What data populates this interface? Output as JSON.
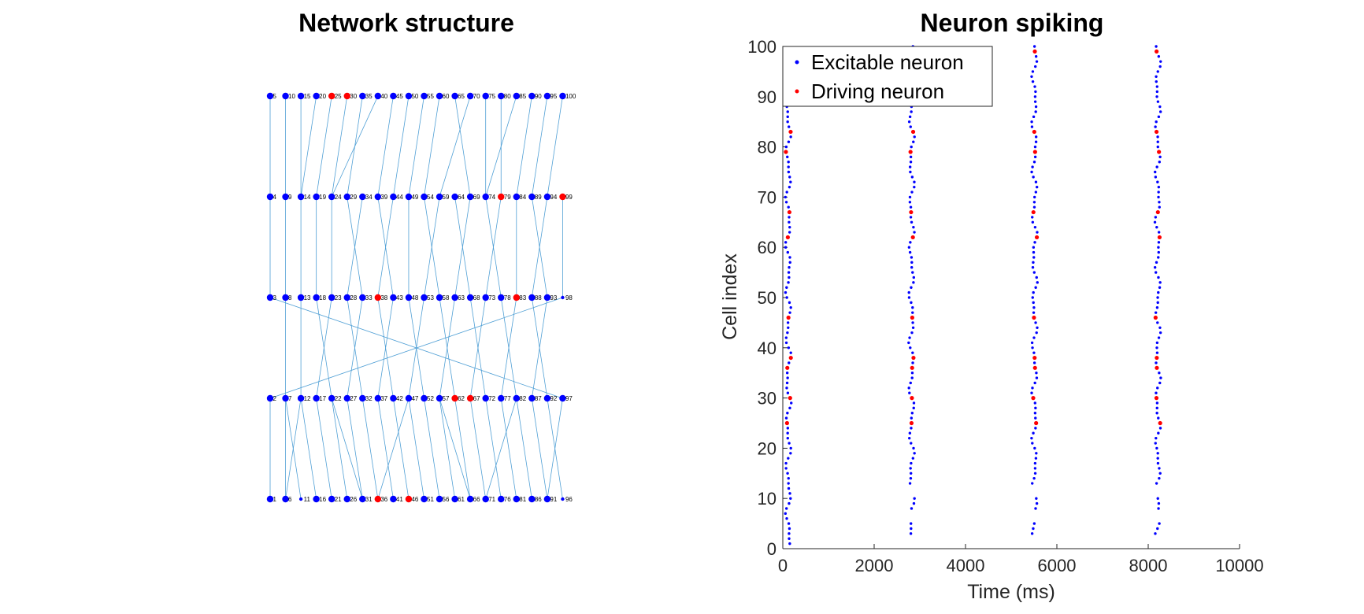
{
  "chart_data": [
    {
      "type": "diagram",
      "title": "Network structure",
      "layout": {
        "columns": 20,
        "rows": 5
      },
      "driving_nodes": [
        25,
        30,
        38,
        46,
        62,
        67,
        79,
        83,
        99,
        36
      ],
      "node_colors": {
        "excitable": "#0000ff",
        "driving": "#ff0000",
        "edge": "#4f9fd5"
      },
      "edges": [
        [
          5,
          4
        ],
        [
          10,
          9
        ],
        [
          15,
          14
        ],
        [
          20,
          14
        ],
        [
          25,
          19
        ],
        [
          30,
          24
        ],
        [
          35,
          29
        ],
        [
          40,
          24
        ],
        [
          45,
          39
        ],
        [
          50,
          44
        ],
        [
          55,
          49
        ],
        [
          60,
          54
        ],
        [
          65,
          69
        ],
        [
          70,
          59
        ],
        [
          75,
          74
        ],
        [
          80,
          79
        ],
        [
          85,
          74
        ],
        [
          90,
          84
        ],
        [
          95,
          89
        ],
        [
          100,
          94
        ],
        [
          4,
          3
        ],
        [
          9,
          8
        ],
        [
          14,
          13
        ],
        [
          19,
          18
        ],
        [
          24,
          23
        ],
        [
          29,
          33
        ],
        [
          34,
          28
        ],
        [
          39,
          43
        ],
        [
          44,
          38
        ],
        [
          49,
          48
        ],
        [
          54,
          58
        ],
        [
          59,
          53
        ],
        [
          64,
          68
        ],
        [
          69,
          63
        ],
        [
          74,
          78
        ],
        [
          79,
          73
        ],
        [
          84,
          83
        ],
        [
          89,
          93
        ],
        [
          94,
          88
        ],
        [
          99,
          98
        ],
        [
          3,
          97
        ],
        [
          98,
          2
        ],
        [
          8,
          7
        ],
        [
          13,
          12
        ],
        [
          18,
          22
        ],
        [
          23,
          17
        ],
        [
          28,
          32
        ],
        [
          33,
          27
        ],
        [
          38,
          42
        ],
        [
          43,
          37
        ],
        [
          48,
          52
        ],
        [
          53,
          47
        ],
        [
          58,
          62
        ],
        [
          63,
          57
        ],
        [
          68,
          72
        ],
        [
          73,
          67
        ],
        [
          78,
          82
        ],
        [
          83,
          77
        ],
        [
          88,
          92
        ],
        [
          93,
          87
        ],
        [
          2,
          1
        ],
        [
          7,
          6
        ],
        [
          7,
          11
        ],
        [
          12,
          16
        ],
        [
          17,
          21
        ],
        [
          22,
          26
        ],
        [
          27,
          31
        ],
        [
          32,
          36
        ],
        [
          37,
          41
        ],
        [
          42,
          46
        ],
        [
          47,
          51
        ],
        [
          52,
          56
        ],
        [
          57,
          61
        ],
        [
          62,
          66
        ],
        [
          67,
          71
        ],
        [
          72,
          76
        ],
        [
          77,
          81
        ],
        [
          82,
          86
        ],
        [
          87,
          91
        ],
        [
          92,
          96
        ],
        [
          97,
          91
        ],
        [
          12,
          6
        ],
        [
          22,
          31
        ],
        [
          47,
          36
        ],
        [
          57,
          66
        ],
        [
          82,
          71
        ]
      ]
    },
    {
      "type": "scatter",
      "title": "Neuron spiking",
      "xlabel": "Time (ms)",
      "ylabel": "Cell index",
      "xlim": [
        0,
        10000
      ],
      "ylim": [
        0,
        100
      ],
      "xticks": [
        0,
        2000,
        4000,
        6000,
        8000,
        10000
      ],
      "yticks": [
        0,
        10,
        20,
        30,
        40,
        50,
        60,
        70,
        80,
        90,
        100
      ],
      "legend_position": "top-left",
      "grid": false,
      "series": [
        {
          "name": "Excitable neuron",
          "color": "#0000ff"
        },
        {
          "name": "Driving neuron",
          "color": "#ff0000"
        }
      ],
      "driving_cells": [
        25,
        30,
        36,
        38,
        46,
        62,
        67,
        79,
        83,
        99
      ],
      "bursts": [
        {
          "base_time": 20,
          "min_cell": 1,
          "max_cell": 88
        },
        {
          "base_time": 2720,
          "min_cell": 3,
          "max_cell": 100
        },
        {
          "base_time": 5410,
          "min_cell": 3,
          "max_cell": 100
        },
        {
          "base_time": 8110,
          "min_cell": 3,
          "max_cell": 100
        }
      ]
    }
  ]
}
